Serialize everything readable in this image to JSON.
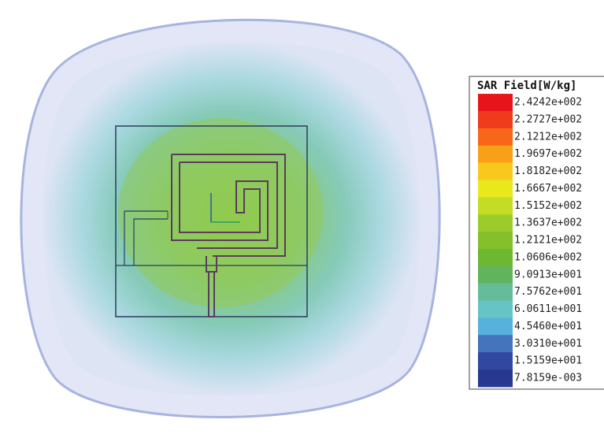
{
  "legend": {
    "title": "SAR Field[W/kg]",
    "labels": [
      "2.4242e+002",
      "2.2727e+002",
      "2.1212e+002",
      "1.9697e+002",
      "1.8182e+002",
      "1.6667e+002",
      "1.5152e+002",
      "1.3637e+002",
      "1.2121e+002",
      "1.0606e+002",
      "9.0913e+001",
      "7.5762e+001",
      "6.0611e+001",
      "4.5460e+001",
      "3.0310e+001",
      "1.5159e+001",
      "7.8159e-003"
    ],
    "colors": [
      "#e8141c",
      "#f03a1c",
      "#f8661a",
      "#f8a018",
      "#f8c81c",
      "#e8e81c",
      "#c4dc24",
      "#9ccc2c",
      "#84c02c",
      "#6cb830",
      "#62b45c",
      "#64bc98",
      "#66c4c4",
      "#58b0dc",
      "#4474bc",
      "#3048a0",
      "#283890"
    ]
  }
}
